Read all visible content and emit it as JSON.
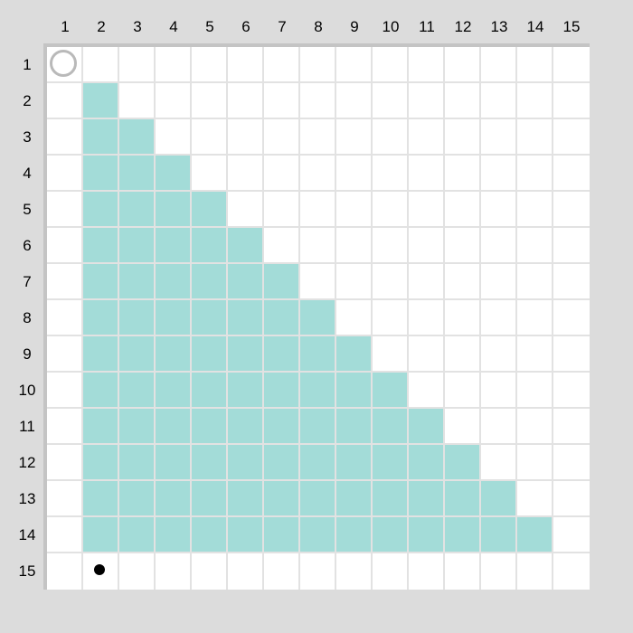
{
  "grid": {
    "rows": 15,
    "cols": 15,
    "column_labels": [
      "1",
      "2",
      "3",
      "4",
      "5",
      "6",
      "7",
      "8",
      "9",
      "10",
      "11",
      "12",
      "13",
      "14",
      "15"
    ],
    "row_labels": [
      "1",
      "2",
      "3",
      "4",
      "5",
      "6",
      "7",
      "8",
      "9",
      "10",
      "11",
      "12",
      "13",
      "14",
      "15"
    ],
    "filled_region": {
      "description_rule": "row r (2..14) filled from column 2 through column r",
      "row_start": 2,
      "row_end": 14,
      "col_start": 2
    },
    "colors": {
      "background": "#dcdcdc",
      "cell_empty": "#ffffff",
      "cell_filled": "#a3dcd8",
      "grid_line": "#e2e2e2",
      "board_border": "#c4c4c4"
    }
  },
  "markers": [
    {
      "type": "ring",
      "name": "start-ring-marker",
      "row": 1,
      "col": 1,
      "color": "#b9b9b9"
    },
    {
      "type": "dot",
      "name": "player-dot-marker",
      "row": 15,
      "col": 2,
      "color": "#000000"
    }
  ]
}
